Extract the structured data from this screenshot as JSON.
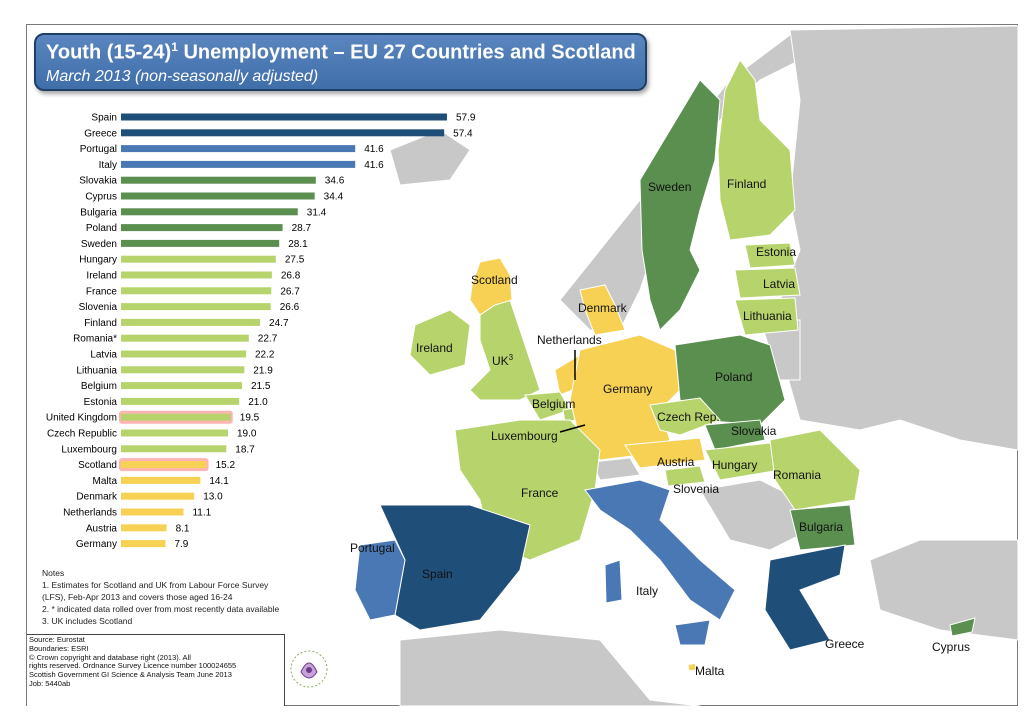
{
  "title": "Youth (15-24)",
  "title_sup": "1",
  "title_rest": " Unemployment – EU 27 Countries and Scotland",
  "subtitle": "March 2013 (non-seasonally adjusted)",
  "chart_data": {
    "type": "bar",
    "orientation": "horizontal",
    "categories": [
      "Spain",
      "Greece",
      "Portugal",
      "Italy",
      "Slovakia",
      "Cyprus",
      "Bulgaria",
      "Poland",
      "Sweden",
      "Hungary",
      "Ireland",
      "France",
      "Slovenia",
      "Finland",
      "Romania*",
      "Latvia",
      "Lithuania",
      "Belgium",
      "Estonia",
      "United Kingdom",
      "Czech Republic",
      "Luxembourg",
      "Scotland",
      "Malta",
      "Denmark",
      "Netherlands",
      "Austria",
      "Germany"
    ],
    "values": [
      57.9,
      57.4,
      41.6,
      41.6,
      34.6,
      34.4,
      31.4,
      28.7,
      28.1,
      27.5,
      26.8,
      26.7,
      26.6,
      24.7,
      22.7,
      22.2,
      21.9,
      21.5,
      21.0,
      19.5,
      19.0,
      18.7,
      15.2,
      14.1,
      13.0,
      11.1,
      8.1,
      7.9
    ],
    "value_labels": [
      "57.9",
      "57.4",
      "41.6",
      "41.6",
      "34.6",
      "34.4",
      "31.4",
      "28.7",
      "28.1",
      "27.5",
      "26.8",
      "26.7",
      "26.6",
      "24.7",
      "22.7",
      "22.2",
      "21.9",
      "21.5",
      "21.0",
      "19.5",
      "19.0",
      "18.7",
      "15.2",
      "14.1",
      "13.0",
      "11.1",
      "8.1",
      "7.9"
    ],
    "band": [
      1,
      1,
      2,
      2,
      3,
      3,
      3,
      3,
      3,
      4,
      4,
      4,
      4,
      4,
      4,
      4,
      4,
      4,
      4,
      4,
      4,
      4,
      5,
      5,
      5,
      5,
      5,
      5
    ],
    "highlighted": [
      "United Kingdom",
      "Scotland"
    ],
    "band_colors": {
      "1": "#1f4e79",
      "2": "#4a78b4",
      "3": "#5a8f4f",
      "4": "#b7d46c",
      "5": "#f7d154"
    },
    "highlight_color": "#ff9999",
    "xlim": [
      0,
      60
    ],
    "grid": false,
    "legend": "none"
  },
  "map_labels": [
    {
      "key": "scotland",
      "text": "Scotland"
    },
    {
      "key": "denmark",
      "text": "Denmark"
    },
    {
      "key": "sweden",
      "text": "Sweden"
    },
    {
      "key": "finland",
      "text": "Finland"
    },
    {
      "key": "estonia",
      "text": "Estonia"
    },
    {
      "key": "latvia",
      "text": "Latvia"
    },
    {
      "key": "lithuania",
      "text": "Lithuania"
    },
    {
      "key": "netherlands",
      "text": "Netherlands"
    },
    {
      "key": "ireland",
      "text": "Ireland"
    },
    {
      "key": "uk",
      "text": "UK",
      "sup": "3"
    },
    {
      "key": "germany",
      "text": "Germany"
    },
    {
      "key": "poland",
      "text": "Poland"
    },
    {
      "key": "belgium",
      "text": "Belgium"
    },
    {
      "key": "czech",
      "text": "Czech Rep."
    },
    {
      "key": "luxembourg",
      "text": "Luxembourg"
    },
    {
      "key": "slovakia",
      "text": "Slovakia"
    },
    {
      "key": "austria",
      "text": "Austria"
    },
    {
      "key": "hungary",
      "text": "Hungary"
    },
    {
      "key": "romania",
      "text": "Romania"
    },
    {
      "key": "france",
      "text": "France"
    },
    {
      "key": "slovenia",
      "text": "Slovenia"
    },
    {
      "key": "bulgaria",
      "text": "Bulgaria"
    },
    {
      "key": "portugal",
      "text": "Portugal"
    },
    {
      "key": "spain",
      "text": "Spain"
    },
    {
      "key": "italy",
      "text": "Italy"
    },
    {
      "key": "greece",
      "text": "Greece"
    },
    {
      "key": "cyprus",
      "text": "Cyprus"
    },
    {
      "key": "malta",
      "text": "Malta"
    }
  ],
  "notes": {
    "heading": "Notes",
    "lines": [
      "1.  Estimates for Scotland and UK from Labour Force Survey",
      "(LFS), Feb-Apr 2013 and covers those aged 16-24",
      "2. * indicated data rolled over from most recently data available",
      "3. UK includes Scotland"
    ]
  },
  "source": {
    "lines": [
      "Source: Eurostat",
      "Boundaries: ESRI",
      "© Crown copyright and database right (2013). All",
      "rights reserved. Ordnance Survey Licence number 100024655",
      "Scottish Government GI Science & Analysis Team June 2013",
      "Job: 5440ab"
    ]
  },
  "colors": {
    "sea": "#ffffff",
    "non_eu_land": "#c8c8c8",
    "title_bg": "#4a78b4"
  }
}
